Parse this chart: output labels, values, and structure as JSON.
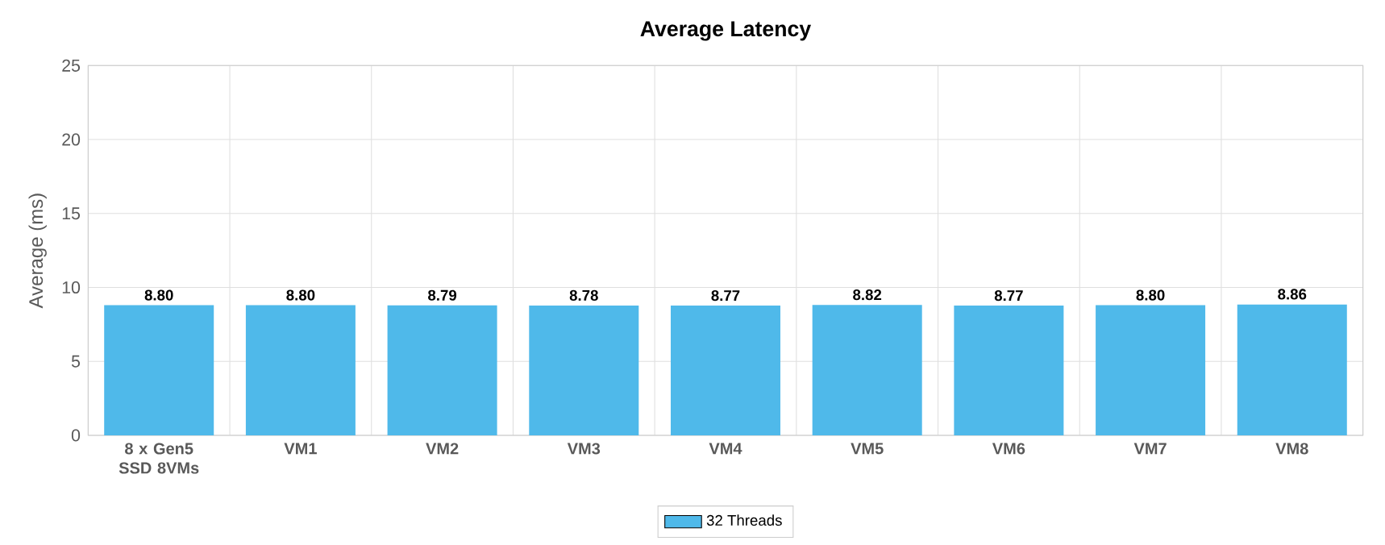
{
  "chart_data": {
    "type": "bar",
    "title": "Average Latency",
    "ylabel": "Average (ms)",
    "categories": [
      "8 x Gen5 SSD 8VMs",
      "VM1",
      "VM2",
      "VM3",
      "VM4",
      "VM5",
      "VM6",
      "VM7",
      "VM8"
    ],
    "series": [
      {
        "name": "32 Threads",
        "color": "#4fb9ea",
        "values": [
          8.8,
          8.8,
          8.79,
          8.78,
          8.77,
          8.82,
          8.77,
          8.8,
          8.86
        ],
        "value_labels": [
          "8.80",
          "8.80",
          "8.79",
          "8.78",
          "8.77",
          "8.82",
          "8.77",
          "8.80",
          "8.86"
        ]
      }
    ],
    "ylim": [
      0,
      25
    ],
    "yticks": [
      0,
      5,
      10,
      15,
      20,
      25
    ],
    "grid": true,
    "legend": "bottom"
  }
}
